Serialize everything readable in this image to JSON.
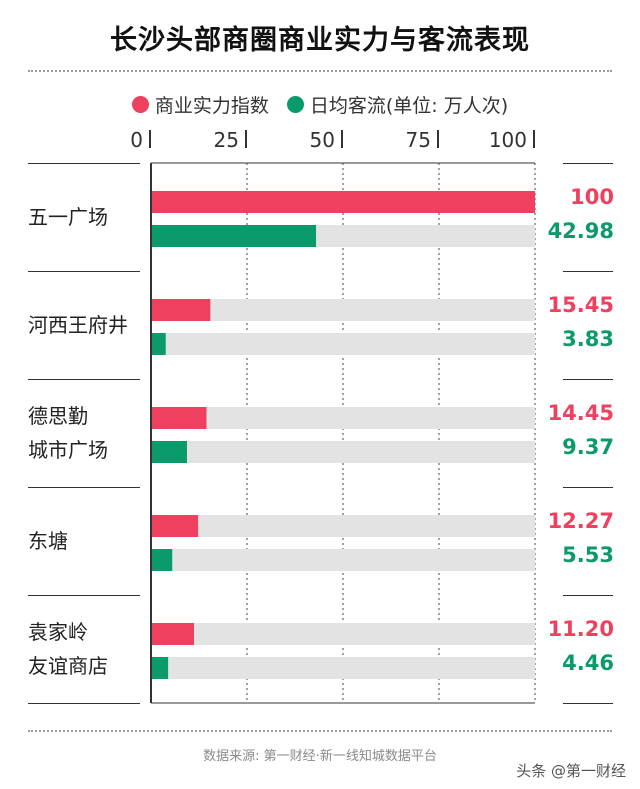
{
  "title": "长沙头部商圈商业实力与客流表现",
  "legend": [
    {
      "label": "商业实力指数",
      "color": "#f0405f"
    },
    {
      "label": "日均客流(单位: 万人次)",
      "color": "#0b9a6c"
    }
  ],
  "chart_data": {
    "type": "bar",
    "orientation": "horizontal",
    "title": "长沙头部商圈商业实力与客流表现",
    "xlim": [
      0,
      100
    ],
    "xticks": [
      "0",
      "25",
      "50",
      "75",
      "100"
    ],
    "grid": true,
    "legend_position": "top",
    "categories": [
      {
        "lines": [
          "五一广场"
        ]
      },
      {
        "lines": [
          "河西王府井"
        ]
      },
      {
        "lines": [
          "德思勤",
          "城市广场"
        ]
      },
      {
        "lines": [
          "东塘"
        ]
      },
      {
        "lines": [
          "袁家岭",
          "友谊商店"
        ]
      }
    ],
    "series": [
      {
        "name": "商业实力指数",
        "color": "#f0405f",
        "values": [
          100,
          15.45,
          14.45,
          12.27,
          11.2
        ],
        "labels": [
          "100",
          "15.45",
          "14.45",
          "12.27",
          "11.20"
        ]
      },
      {
        "name": "日均客流(单位: 万人次)",
        "color": "#0b9a6c",
        "values": [
          42.98,
          3.83,
          9.37,
          5.53,
          4.46
        ],
        "labels": [
          "42.98",
          "3.83",
          "9.37",
          "5.53",
          "4.46"
        ]
      }
    ]
  },
  "footer": "数据来源: 第一财经·新一线知城数据平台",
  "watermark": "头条 @第一财经"
}
